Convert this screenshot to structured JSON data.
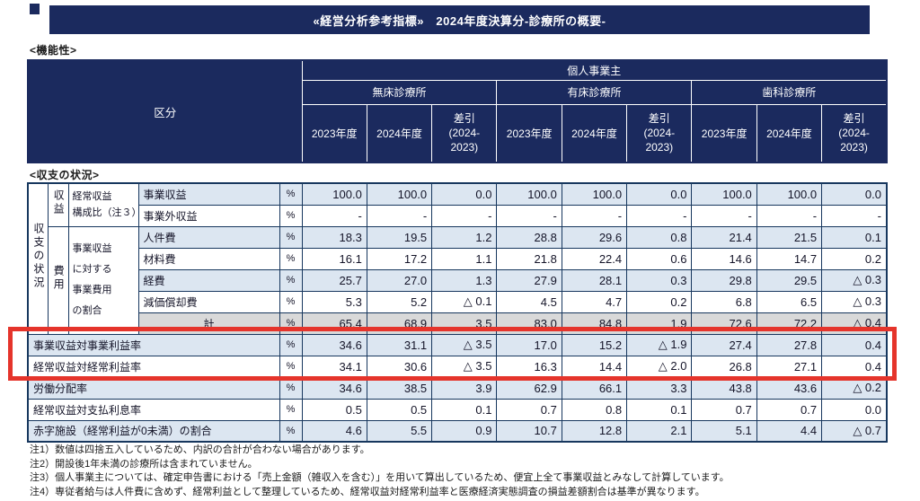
{
  "title": "«経営分析参考指標»　2024年度決算分-診療所の概要-",
  "sections": {
    "functionality": "<機能性>",
    "income_status": "<収支の状況>"
  },
  "header_table": {
    "kubun": "区分",
    "owner_group": "個人事業主",
    "facility_groups": [
      "無床診療所",
      "有床診療所",
      "歯科診療所"
    ],
    "year_columns": [
      "2023年度",
      "2024年度",
      "差引\n(2024-\n2023)"
    ]
  },
  "body_table": {
    "side_label": "収支の状況",
    "groups": {
      "income_label": "収益",
      "income_desc": "経常収益\n構成比（注３）",
      "expense_label": "費用",
      "expense_desc": "事業収益\nに対する\n事業費用\nの割合"
    },
    "unit": "%",
    "rows": [
      {
        "label": "事業収益",
        "values": [
          "100.0",
          "100.0",
          "0.0",
          "100.0",
          "100.0",
          "0.0",
          "100.0",
          "100.0",
          "0.0"
        ]
      },
      {
        "label": "事業外収益",
        "values": [
          "-",
          "-",
          "-",
          "-",
          "-",
          "-",
          "-",
          "-",
          "-"
        ]
      },
      {
        "label": "人件費",
        "values": [
          "18.3",
          "19.5",
          "1.2",
          "28.8",
          "29.6",
          "0.8",
          "21.4",
          "21.5",
          "0.1"
        ]
      },
      {
        "label": "材料費",
        "values": [
          "16.1",
          "17.2",
          "1.1",
          "21.8",
          "22.4",
          "0.6",
          "14.6",
          "14.7",
          "0.2"
        ]
      },
      {
        "label": "経費",
        "values": [
          "25.7",
          "27.0",
          "1.3",
          "27.9",
          "28.1",
          "0.3",
          "29.8",
          "29.5",
          "△ 0.3"
        ]
      },
      {
        "label": "減価償却費",
        "values": [
          "5.3",
          "5.2",
          "△ 0.1",
          "4.5",
          "4.7",
          "0.2",
          "6.8",
          "6.5",
          "△ 0.3"
        ]
      },
      {
        "label": "計",
        "values": [
          "65.4",
          "68.9",
          "3.5",
          "83.0",
          "84.8",
          "1.9",
          "72.6",
          "72.2",
          "△ 0.4"
        ]
      },
      {
        "label": "事業収益対事業利益率",
        "values": [
          "34.6",
          "31.1",
          "△ 3.5",
          "17.0",
          "15.2",
          "△ 1.9",
          "27.4",
          "27.8",
          "0.4"
        ]
      },
      {
        "label": "経常収益対経常利益率",
        "values": [
          "34.1",
          "30.6",
          "△ 3.5",
          "16.3",
          "14.4",
          "△ 2.0",
          "26.8",
          "27.1",
          "0.4"
        ]
      },
      {
        "label": "労働分配率",
        "values": [
          "34.6",
          "38.5",
          "3.9",
          "62.9",
          "66.1",
          "3.3",
          "43.8",
          "43.6",
          "△ 0.2"
        ]
      },
      {
        "label": "経常収益対支払利息率",
        "values": [
          "0.5",
          "0.5",
          "0.1",
          "0.7",
          "0.8",
          "0.1",
          "0.7",
          "0.7",
          "0.0"
        ]
      },
      {
        "label": "赤字施設（経常利益が0未満）の割合",
        "values": [
          "4.6",
          "5.5",
          "0.9",
          "10.7",
          "12.8",
          "2.1",
          "5.1",
          "4.4",
          "△ 0.7"
        ]
      }
    ]
  },
  "notes": [
    "注1）数値は四捨五入しているため、内訳の合計が合わない場合があります。",
    "注2）開設後1年未満の診療所は含まれていません。",
    "注3）個人事業主については、確定申告書における「売上金額（雑収入を含む）」を用いて算出しているため、便宜上全て事業収益とみなして計算しています。",
    "注4）専従者給与は人件費に含めず、経常利益として整理しているため、経常収益対経常利益率と医療経済実態調査の損益差額割合は基準が異なります。"
  ],
  "colors": {
    "navy": "#1b2a5e",
    "light_blue": "#dce6f1",
    "gray": "#d9d9d9",
    "highlight_red": "#e5342b"
  }
}
